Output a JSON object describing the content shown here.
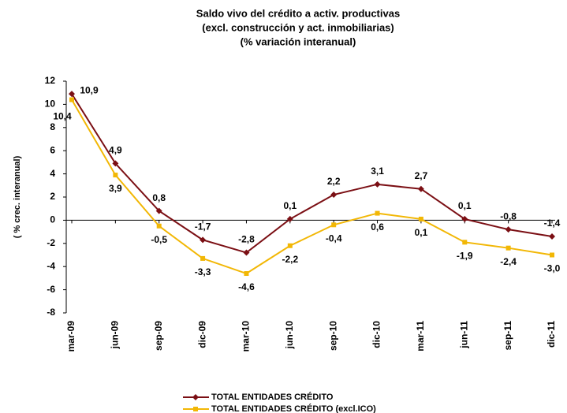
{
  "chart_data": {
    "type": "line",
    "title": "Saldo vivo del crédito a activ. productivas",
    "subtitle": [
      "(excl. construcción y act. inmobiliarias)",
      "(% variación interanual)"
    ],
    "y_label": "( % crec. interanual)",
    "categories": [
      "mar-09",
      "jun-09",
      "sep-09",
      "dic-09",
      "mar-10",
      "jun-10",
      "sep-10",
      "dic-10",
      "mar-11",
      "jun-11",
      "sep-11",
      "dic-11"
    ],
    "series": [
      {
        "name": "TOTAL ENTIDADES CRÉDITO",
        "color": "#7b0f14",
        "marker": "diamond",
        "values": [
          10.9,
          4.9,
          0.8,
          -1.7,
          -2.8,
          0.1,
          2.2,
          3.1,
          2.7,
          0.1,
          -0.8,
          -1.4
        ],
        "value_labels": [
          "10,9",
          "4,9",
          "0,8",
          "-1,7",
          "-2,8",
          "0,1",
          "2,2",
          "3,1",
          "2,7",
          "0,1",
          "-0,8",
          "-1,4"
        ]
      },
      {
        "name": "TOTAL ENTIDADES CRÉDITO (excl.ICO)",
        "color": "#f2b705",
        "marker": "square",
        "values": [
          10.4,
          3.9,
          -0.5,
          -3.3,
          -4.6,
          -2.2,
          -0.4,
          0.6,
          0.1,
          -1.9,
          -2.4,
          -3.0
        ],
        "value_labels": [
          "10,4",
          "3,9",
          "-0,5",
          "-3,3",
          "-4,6",
          "-2,2",
          "-0,4",
          "0,6",
          "0,1",
          "-1,9",
          "-2,4",
          "-3,0"
        ]
      }
    ],
    "ylim": [
      -8,
      12
    ],
    "yticks": [
      -8,
      -6,
      -4,
      -2,
      0,
      2,
      4,
      6,
      8,
      10,
      12
    ]
  }
}
